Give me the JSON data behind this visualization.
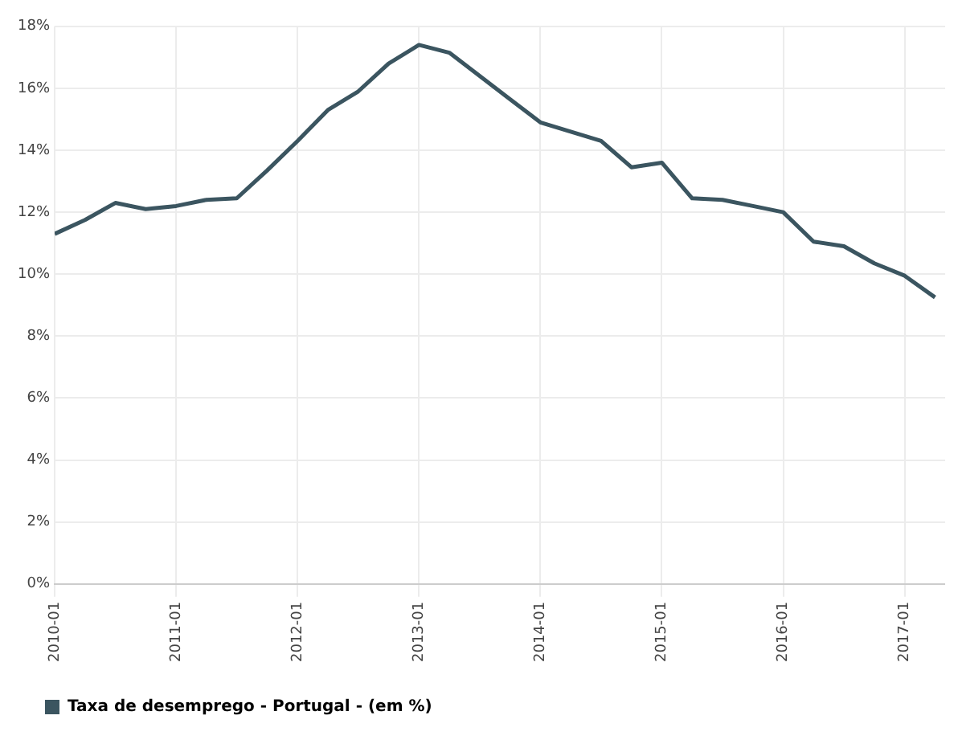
{
  "chart_data": {
    "type": "line",
    "x": [
      "2010-01",
      "2010-04",
      "2010-07",
      "2010-10",
      "2011-01",
      "2011-04",
      "2011-07",
      "2011-10",
      "2012-01",
      "2012-04",
      "2012-07",
      "2012-10",
      "2013-01",
      "2013-04",
      "2013-07",
      "2013-10",
      "2014-01",
      "2014-04",
      "2014-07",
      "2014-10",
      "2015-01",
      "2015-04",
      "2015-07",
      "2015-10",
      "2016-01",
      "2016-04",
      "2016-07",
      "2016-10",
      "2017-01",
      "2017-04"
    ],
    "series": [
      {
        "name": "Taxa de desemprego - Portugal - (em %)",
        "color": "#3b5560",
        "values": [
          11.3,
          11.75,
          12.3,
          12.1,
          12.2,
          12.4,
          12.45,
          13.35,
          14.3,
          15.3,
          15.9,
          16.8,
          17.4,
          17.15,
          16.4,
          15.65,
          14.9,
          14.6,
          14.3,
          13.45,
          13.6,
          12.45,
          12.4,
          12.2,
          12.0,
          11.05,
          10.9,
          10.35,
          9.95,
          9.25
        ]
      }
    ],
    "xlim": [
      "2010-01",
      "2017-05"
    ],
    "xticks": [
      {
        "value": "2010-01",
        "label": "2010-01"
      },
      {
        "value": "2011-01",
        "label": "2011-01"
      },
      {
        "value": "2012-01",
        "label": "2012-01"
      },
      {
        "value": "2013-01",
        "label": "2013-01"
      },
      {
        "value": "2014-01",
        "label": "2014-01"
      },
      {
        "value": "2015-01",
        "label": "2015-01"
      },
      {
        "value": "2016-01",
        "label": "2016-01"
      },
      {
        "value": "2017-01",
        "label": "2017-01"
      }
    ],
    "ylim": [
      0,
      18
    ],
    "yticks": [
      {
        "value": 0,
        "label": "0%"
      },
      {
        "value": 2,
        "label": "2%"
      },
      {
        "value": 4,
        "label": "4%"
      },
      {
        "value": 6,
        "label": "6%"
      },
      {
        "value": 8,
        "label": "8%"
      },
      {
        "value": 10,
        "label": "10%"
      },
      {
        "value": 12,
        "label": "12%"
      },
      {
        "value": 14,
        "label": "14%"
      },
      {
        "value": 16,
        "label": "16%"
      },
      {
        "value": 18,
        "label": "18%"
      }
    ],
    "grid": true,
    "legend": "bottom left",
    "marker": "none",
    "line_style": "solid"
  }
}
